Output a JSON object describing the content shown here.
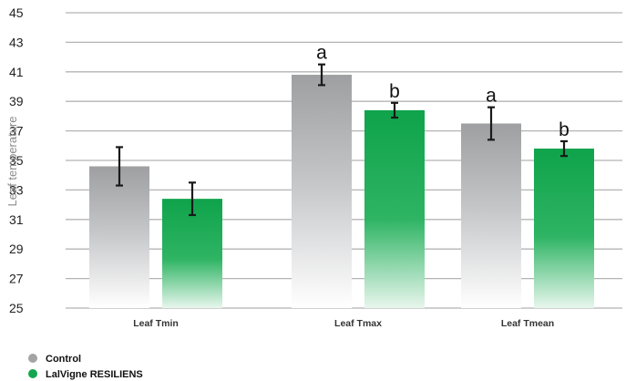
{
  "chart_data": {
    "type": "bar",
    "ylabel": "Leaf temperature",
    "xlabel": "",
    "ylim": [
      25,
      45
    ],
    "yticks": [
      25,
      27,
      29,
      31,
      33,
      35,
      37,
      39,
      41,
      43,
      45
    ],
    "grid": true,
    "legend_position": "bottom-left",
    "categories": [
      "Leaf Tmin",
      "Leaf Tmax",
      "Leaf Tmean"
    ],
    "series": [
      {
        "name": "Control",
        "color": "#a3a4a6",
        "values": [
          34.6,
          40.8,
          37.5
        ],
        "error": [
          1.3,
          0.7,
          1.1
        ],
        "letters": [
          "",
          "a",
          "a"
        ]
      },
      {
        "name": "LalVigne RESILIENS",
        "color": "#14a64e",
        "values": [
          32.4,
          38.4,
          35.8
        ],
        "error": [
          1.1,
          0.5,
          0.5
        ],
        "letters": [
          "",
          "b",
          "b"
        ]
      }
    ]
  }
}
